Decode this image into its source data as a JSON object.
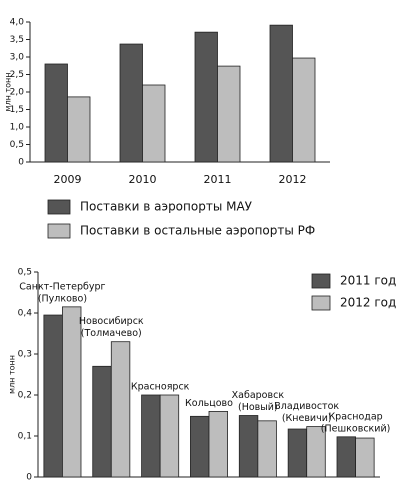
{
  "chart_data": [
    {
      "type": "bar",
      "y_label": "млн тонн",
      "categories": [
        "2009",
        "2010",
        "2011",
        "2012"
      ],
      "series": [
        {
          "name": "Поставки в аэропорты МАУ",
          "color": "#555555",
          "values": [
            2.8,
            3.37,
            3.71,
            3.91
          ]
        },
        {
          "name": "Поставки в остальные аэропорты РФ",
          "color": "#bdbdbd",
          "values": [
            1.86,
            2.2,
            2.74,
            2.97
          ]
        }
      ],
      "ylim": [
        0,
        4
      ],
      "yticks": [
        0,
        {
          "value": 0.5,
          "label": "0,5"
        },
        {
          "value": 1,
          "label": "1,0"
        },
        {
          "value": 1.5,
          "label": "1,5"
        },
        {
          "value": 2,
          "label": "2,0"
        },
        {
          "value": 2.5,
          "label": "2,5"
        },
        {
          "value": 3,
          "label": "3,0"
        },
        {
          "value": 3.5,
          "label": "3,5"
        },
        {
          "value": 4,
          "label": "4,0"
        }
      ],
      "legend": "bottom"
    },
    {
      "type": "bar",
      "y_label": "млн тонн",
      "categories": [
        [
          "Санкт-Петербург",
          "(Пулково)"
        ],
        [
          "Новосибирск",
          "(Толмачево)"
        ],
        [
          "Красноярск"
        ],
        [
          "Кольцово"
        ],
        [
          "Хабаровск",
          "(Новый)"
        ],
        [
          "Владивосток",
          "(Кневичи)"
        ],
        [
          "Краснодар",
          "(Пешковский)"
        ]
      ],
      "series": [
        {
          "name": "2011 год",
          "color": "#555555",
          "values": [
            0.395,
            0.27,
            0.2,
            0.148,
            0.15,
            0.117,
            0.098
          ]
        },
        {
          "name": "2012 год",
          "color": "#bdbdbd",
          "values": [
            0.415,
            0.33,
            0.2,
            0.16,
            0.137,
            0.123,
            0.095
          ]
        }
      ],
      "ylim": [
        0,
        0.5
      ],
      "yticks": [
        0,
        {
          "value": 0.1,
          "label": "0,1"
        },
        {
          "value": 0.2,
          "label": "0,2"
        },
        {
          "value": 0.3,
          "label": "0,3"
        },
        {
          "value": 0.4,
          "label": "0,4"
        },
        {
          "value": 0.5,
          "label": "0,5"
        }
      ],
      "legend": "top-right"
    }
  ]
}
